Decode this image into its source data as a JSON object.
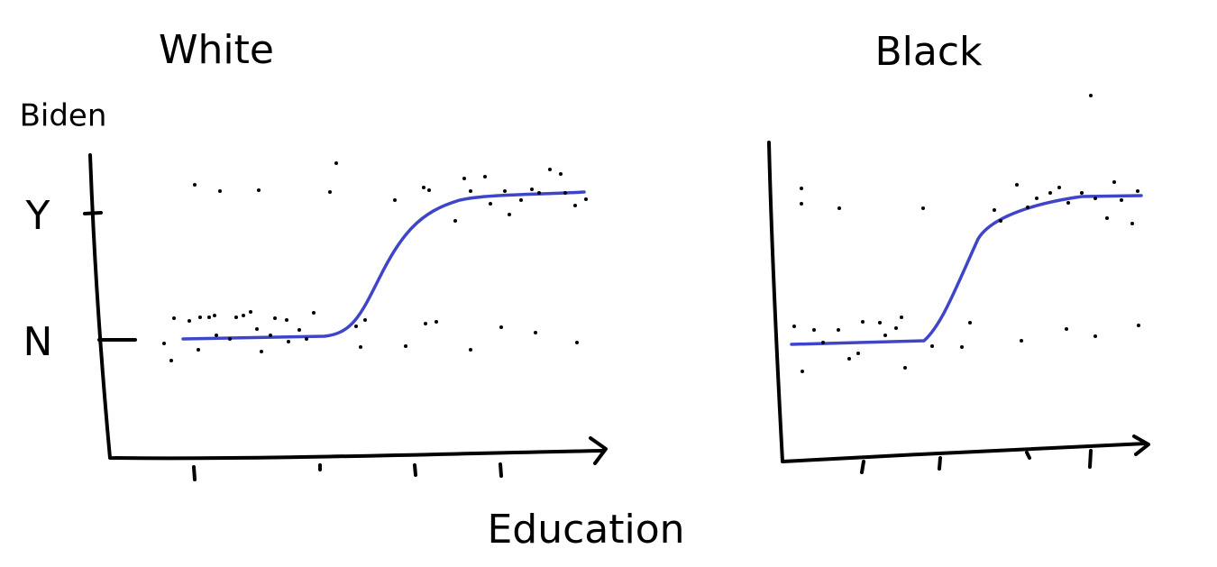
{
  "panels": [
    {
      "title": "White",
      "y_label": "Biden",
      "y_ticks": [
        "Y",
        "N"
      ]
    },
    {
      "title": "Black"
    }
  ],
  "x_label": "Education"
}
